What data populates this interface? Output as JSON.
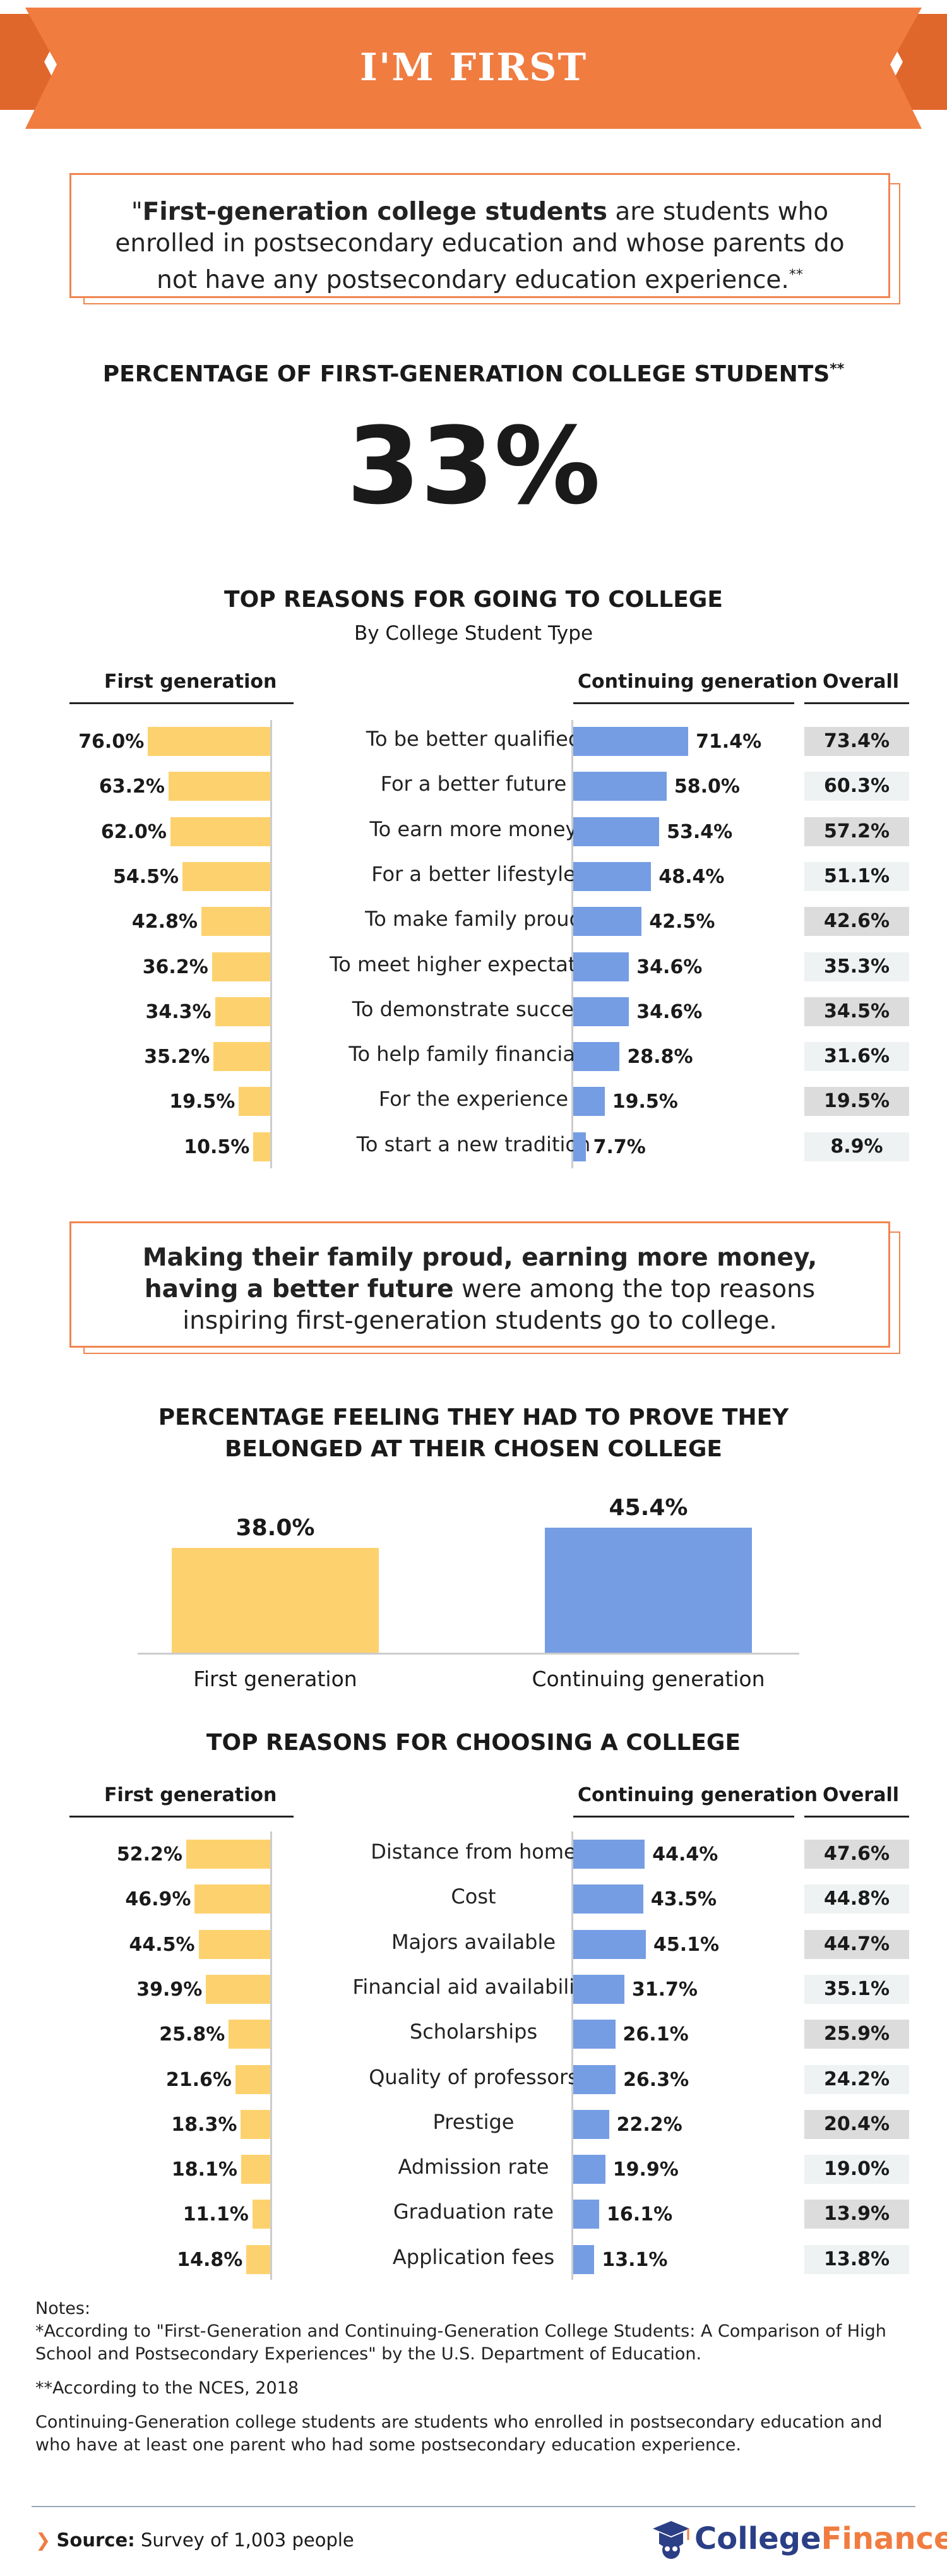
{
  "banner": {
    "title": "I'M FIRST",
    "color": "#f07c40"
  },
  "definition": {
    "bold": "First-generation college students",
    "rest": " are students who enrolled in postsecondary education and whose parents do not have any postsecondary education experience.",
    "mark": "**",
    "open_quote": "\""
  },
  "stat": {
    "title": "PERCENTAGE OF FIRST-GENERATION COLLEGE STUDENTS",
    "mark": "**",
    "value": "33%"
  },
  "reasons_going": {
    "title": "TOP REASONS FOR GOING TO COLLEGE",
    "subtitle": "By College Student Type",
    "head_first": "First generation",
    "head_cont": "Continuing generation",
    "head_overall": "Overall"
  },
  "callout": {
    "bold": "Making their family proud, earning more money, having a better future",
    "rest": " were among the top reasons inspiring first-generation students go to college."
  },
  "belonged": {
    "title_line1": "PERCENTAGE FEELING THEY HAD TO PROVE THEY",
    "title_line2": "BELONGED AT THEIR CHOSEN COLLEGE"
  },
  "reasons_choosing": {
    "title": "TOP REASONS FOR CHOOSING A COLLEGE",
    "head_first": "First generation",
    "head_cont": "Continuing generation",
    "head_overall": "Overall"
  },
  "notes": {
    "heading": "Notes:",
    "note1": "*According to \"First-Generation and Continuing-Generation College Students: A Comparison of High School and Postsecondary Experiences\" by the U.S. Department of Education.",
    "note2": "**According to the NCES, 2018",
    "note3": "Continuing-Generation college students are students who enrolled in postsecondary education and who have at least one parent who had some postsecondary education experience."
  },
  "footer": {
    "source_label": "Source:",
    "source_text": " Survey of 1,003 people",
    "logo_a": "College",
    "logo_b": "Finance"
  },
  "colors": {
    "first": "#fdd26e",
    "continuing": "#759de4",
    "accent": "#f07c40"
  },
  "chart_data": [
    {
      "type": "bar",
      "title": "TOP REASONS FOR GOING TO COLLEGE",
      "subtitle": "By College Student Type",
      "categories": [
        "To be better qualified",
        "For a better future",
        "To earn more money",
        "For a better lifestyle",
        "To make family proud",
        "To meet higher expectations",
        "To demonstrate success",
        "To help family financially",
        "For the experience",
        "To start a new tradition"
      ],
      "series": [
        {
          "name": "First generation",
          "values": [
            76.0,
            63.2,
            62.0,
            54.5,
            42.8,
            36.2,
            34.3,
            35.2,
            19.5,
            10.5
          ],
          "labels": [
            "76.0%",
            "63.2%",
            "62.0%",
            "54.5%",
            "42.8%",
            "36.2%",
            "34.3%",
            "35.2%",
            "19.5%",
            "10.5%"
          ]
        },
        {
          "name": "Continuing generation",
          "values": [
            71.4,
            58.0,
            53.4,
            48.4,
            42.5,
            34.6,
            34.6,
            28.8,
            19.5,
            7.7
          ],
          "labels": [
            "71.4%",
            "58.0%",
            "53.4%",
            "48.4%",
            "42.5%",
            "34.6%",
            "34.6%",
            "28.8%",
            "19.5%",
            "7.7%"
          ]
        },
        {
          "name": "Overall",
          "values": [
            73.4,
            60.3,
            57.2,
            51.1,
            42.6,
            35.3,
            34.5,
            31.6,
            19.5,
            8.9
          ],
          "labels": [
            "73.4%",
            "60.3%",
            "57.2%",
            "51.1%",
            "42.6%",
            "35.3%",
            "34.5%",
            "31.6%",
            "19.5%",
            "8.9%"
          ]
        }
      ]
    },
    {
      "type": "bar",
      "title": "PERCENTAGE FEELING THEY HAD TO PROVE THEY BELONGED AT THEIR CHOSEN COLLEGE",
      "categories": [
        "First generation",
        "Continuing generation"
      ],
      "values": [
        38.0,
        45.4
      ],
      "labels": [
        "38.0%",
        "45.4%"
      ]
    },
    {
      "type": "bar",
      "title": "TOP REASONS FOR CHOOSING A COLLEGE",
      "categories": [
        "Distance from home",
        "Cost",
        "Majors available",
        "Financial aid availability",
        "Scholarships",
        "Quality of professors",
        "Prestige",
        "Admission rate",
        "Graduation rate",
        "Application fees"
      ],
      "series": [
        {
          "name": "First generation",
          "values": [
            52.2,
            46.9,
            44.5,
            39.9,
            25.8,
            21.6,
            18.3,
            18.1,
            11.1,
            14.8
          ],
          "labels": [
            "52.2%",
            "46.9%",
            "44.5%",
            "39.9%",
            "25.8%",
            "21.6%",
            "18.3%",
            "18.1%",
            "11.1%",
            "14.8%"
          ]
        },
        {
          "name": "Continuing generation",
          "values": [
            44.4,
            43.5,
            45.1,
            31.7,
            26.1,
            26.3,
            22.2,
            19.9,
            16.1,
            13.1
          ],
          "labels": [
            "44.4%",
            "43.5%",
            "45.1%",
            "31.7%",
            "26.1%",
            "26.3%",
            "22.2%",
            "19.9%",
            "16.1%",
            "13.1%"
          ]
        },
        {
          "name": "Overall",
          "values": [
            47.6,
            44.8,
            44.7,
            35.1,
            25.9,
            24.2,
            20.4,
            19.0,
            13.9,
            13.8
          ],
          "labels": [
            "47.6%",
            "44.8%",
            "44.7%",
            "35.1%",
            "25.9%",
            "24.2%",
            "20.4%",
            "19.0%",
            "13.9%",
            "13.8%"
          ]
        }
      ]
    }
  ]
}
